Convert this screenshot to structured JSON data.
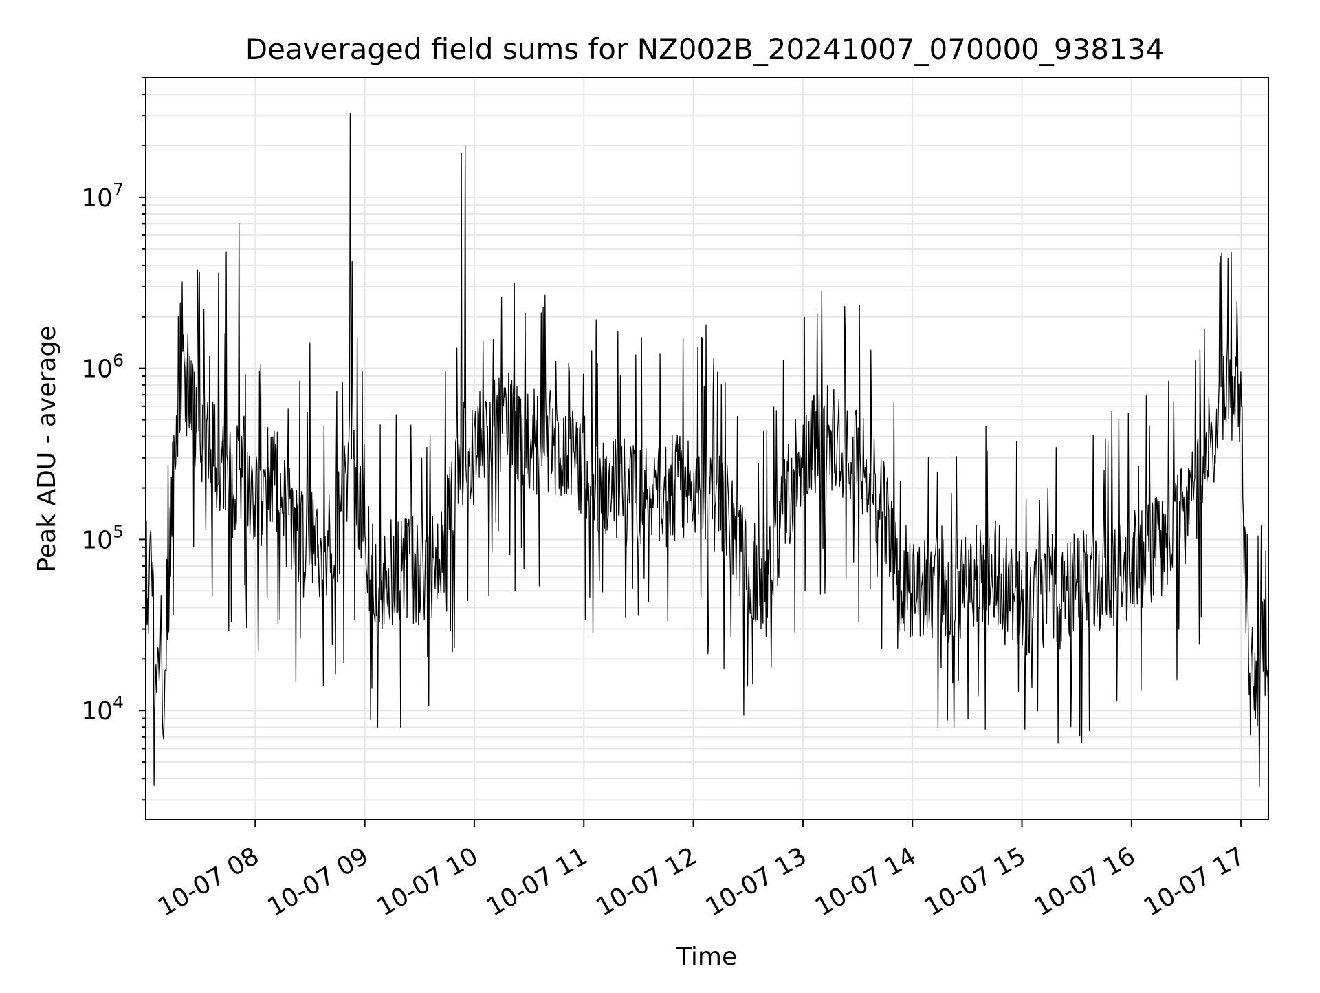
{
  "chart_data": {
    "type": "line",
    "title": "Deaveraged field sums for NZ002B_20241007_070000_938134",
    "xlabel": "Time",
    "ylabel": "Peak ADU - average",
    "yscale": "log",
    "grid": true,
    "xlim": [
      "2024-10-07 07:00",
      "2024-10-07 17:15"
    ],
    "ylim": [
      2300,
      50000000
    ],
    "x_ticks": [
      "10-07 08",
      "10-07 09",
      "10-07 10",
      "10-07 11",
      "10-07 12",
      "10-07 13",
      "10-07 14",
      "10-07 15",
      "10-07 16",
      "10-07 17"
    ],
    "y_ticks": [
      {
        "base": "10",
        "exp": "4"
      },
      {
        "base": "10",
        "exp": "5"
      },
      {
        "base": "10",
        "exp": "6"
      },
      {
        "base": "10",
        "exp": "7"
      }
    ],
    "line_color": "#000000",
    "grid_color": "#e6e6e6",
    "series": [
      {
        "x": [
          "2024-10-07 07:00",
          "2024-10-07 07:03",
          "2024-10-07 07:06",
          "2024-10-07 07:08",
          "2024-10-07 07:10",
          "2024-10-07 07:13",
          "2024-10-07 07:15",
          "2024-10-07 07:20",
          "2024-10-07 07:25",
          "2024-10-07 07:30",
          "2024-10-07 07:36",
          "2024-10-07 07:42",
          "2024-10-07 07:48",
          "2024-10-07 07:54",
          "2024-10-07 08:00",
          "2024-10-07 08:10",
          "2024-10-07 08:20",
          "2024-10-07 08:30",
          "2024-10-07 08:40",
          "2024-10-07 08:48",
          "2024-10-07 08:53",
          "2024-10-07 09:00",
          "2024-10-07 09:10",
          "2024-10-07 09:20",
          "2024-10-07 09:30",
          "2024-10-07 09:40",
          "2024-10-07 09:48",
          "2024-10-07 09:55",
          "2024-10-07 10:00",
          "2024-10-07 10:15",
          "2024-10-07 10:30",
          "2024-10-07 10:45",
          "2024-10-07 11:00",
          "2024-10-07 11:15",
          "2024-10-07 11:30",
          "2024-10-07 11:45",
          "2024-10-07 12:00",
          "2024-10-07 12:15",
          "2024-10-07 12:30",
          "2024-10-07 12:40",
          "2024-10-07 12:50",
          "2024-10-07 13:00",
          "2024-10-07 13:15",
          "2024-10-07 13:30",
          "2024-10-07 13:45",
          "2024-10-07 13:52",
          "2024-10-07 14:00",
          "2024-10-07 14:15",
          "2024-10-07 14:30",
          "2024-10-07 14:45",
          "2024-10-07 15:00",
          "2024-10-07 15:10",
          "2024-10-07 15:20",
          "2024-10-07 15:30",
          "2024-10-07 15:45",
          "2024-10-07 16:00",
          "2024-10-07 16:15",
          "2024-10-07 16:30",
          "2024-10-07 16:40",
          "2024-10-07 16:50",
          "2024-10-07 16:55",
          "2024-10-07 17:00",
          "2024-10-07 17:03",
          "2024-10-07 17:06",
          "2024-10-07 17:09",
          "2024-10-07 17:12",
          "2024-10-07 17:15"
        ],
        "y": [
          40000,
          60000,
          12000,
          35000,
          9500,
          60000,
          300000,
          800000,
          600000,
          400000,
          350000,
          250000,
          200000,
          300000,
          150000,
          250000,
          120000,
          90000,
          80000,
          150000,
          400000,
          80000,
          60000,
          70000,
          60000,
          80000,
          150000,
          400000,
          300000,
          500000,
          400000,
          350000,
          250000,
          200000,
          180000,
          200000,
          200000,
          150000,
          70000,
          50000,
          150000,
          350000,
          400000,
          300000,
          150000,
          60000,
          50000,
          55000,
          60000,
          60000,
          40000,
          45000,
          50000,
          55000,
          60000,
          70000,
          90000,
          150000,
          250000,
          600000,
          900000,
          700000,
          30000,
          20000,
          15000,
          25000,
          20000
        ],
        "spikes": [
          {
            "x": "2024-10-07 07:02",
            "y": 85000
          },
          {
            "x": "2024-10-07 07:05",
            "y": 9500
          },
          {
            "x": "2024-10-07 07:09",
            "y": 9200
          },
          {
            "x": "2024-10-07 07:20",
            "y": 3200000
          },
          {
            "x": "2024-10-07 07:23",
            "y": 1600000
          },
          {
            "x": "2024-10-07 07:32",
            "y": 2200000
          },
          {
            "x": "2024-10-07 07:40",
            "y": 3600000
          },
          {
            "x": "2024-10-07 07:44",
            "y": 4800000
          },
          {
            "x": "2024-10-07 07:51",
            "y": 7000000
          },
          {
            "x": "2024-10-07 07:55",
            "y": 55000
          },
          {
            "x": "2024-10-07 08:30",
            "y": 1400000
          },
          {
            "x": "2024-10-07 08:52",
            "y": 31000000
          },
          {
            "x": "2024-10-07 08:53",
            "y": 4200000
          },
          {
            "x": "2024-10-07 09:05",
            "y": 37000
          },
          {
            "x": "2024-10-07 09:45",
            "y": 38000
          },
          {
            "x": "2024-10-07 09:53",
            "y": 18000000
          },
          {
            "x": "2024-10-07 09:55",
            "y": 20000000
          },
          {
            "x": "2024-10-07 10:08",
            "y": 47000
          },
          {
            "x": "2024-10-07 10:15",
            "y": 2600000
          },
          {
            "x": "2024-10-07 10:28",
            "y": 2100000
          },
          {
            "x": "2024-10-07 11:30",
            "y": 36000
          },
          {
            "x": "2024-10-07 12:07",
            "y": 1800000
          },
          {
            "x": "2024-10-07 12:37",
            "y": 30000
          },
          {
            "x": "2024-10-07 13:08",
            "y": 2100000
          },
          {
            "x": "2024-10-07 13:23",
            "y": 2300000
          },
          {
            "x": "2024-10-07 13:52",
            "y": 23000
          },
          {
            "x": "2024-10-07 14:20",
            "y": 25000
          },
          {
            "x": "2024-10-07 15:05",
            "y": 20500
          },
          {
            "x": "2024-10-07 16:40",
            "y": 1700000
          },
          {
            "x": "2024-10-07 16:53",
            "y": 4400000
          },
          {
            "x": "2024-10-07 16:55",
            "y": 380000
          },
          {
            "x": "2024-10-07 17:05",
            "y": 7200
          },
          {
            "x": "2024-10-07 17:10",
            "y": 3600
          },
          {
            "x": "2024-10-07 17:11",
            "y": 120000
          }
        ]
      }
    ]
  }
}
